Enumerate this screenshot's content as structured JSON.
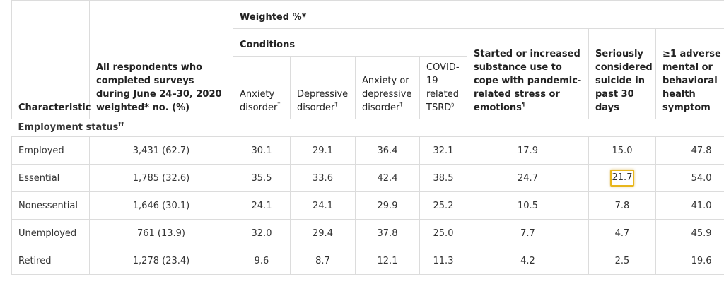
{
  "header": {
    "characteristic": "Characteristic",
    "all_respondents": "All respondents who completed surveys during June 24–30, 2020 weighted* no. (%)",
    "weighted": "Weighted %*",
    "conditions": "Conditions",
    "anxiety": "Anxiety disorder",
    "anxiety_mark": "†",
    "depressive": "Depressive disorder",
    "depressive_mark": "†",
    "anx_or_dep": "Anxiety or depressive disorder",
    "anx_or_dep_mark": "†",
    "tsrd": "COVID-19–related TSRD",
    "tsrd_mark": "§",
    "substance": "Started or increased substance use to cope with pandemic-related stress or emotions",
    "substance_mark": "¶",
    "suicide": "Seriously considered suicide in past 30 days",
    "adverse": "≥1 adverse mental or behavioral health symptom"
  },
  "section": {
    "label": "Employment status",
    "mark": "††"
  },
  "rows": [
    {
      "label": "Employed",
      "values": [
        "3,431 (62.7)",
        "30.1",
        "29.1",
        "36.4",
        "32.1",
        "17.9",
        "15.0",
        "47.8"
      ]
    },
    {
      "label": "Essential",
      "values": [
        "1,785 (32.6)",
        "35.5",
        "33.6",
        "42.4",
        "38.5",
        "24.7",
        "21.7",
        "54.0"
      ]
    },
    {
      "label": "Nonessential",
      "values": [
        "1,646 (30.1)",
        "24.1",
        "24.1",
        "29.9",
        "25.2",
        "10.5",
        "7.8",
        "41.0"
      ]
    },
    {
      "label": "Unemployed",
      "values": [
        "761 (13.9)",
        "32.0",
        "29.4",
        "37.8",
        "25.0",
        "7.7",
        "4.7",
        "45.9"
      ]
    },
    {
      "label": "Retired",
      "values": [
        "1,278 (23.4)",
        "9.6",
        "8.7",
        "12.1",
        "11.3",
        "4.2",
        "2.5",
        "19.6"
      ]
    }
  ],
  "highlight_color": "#e8b61c"
}
